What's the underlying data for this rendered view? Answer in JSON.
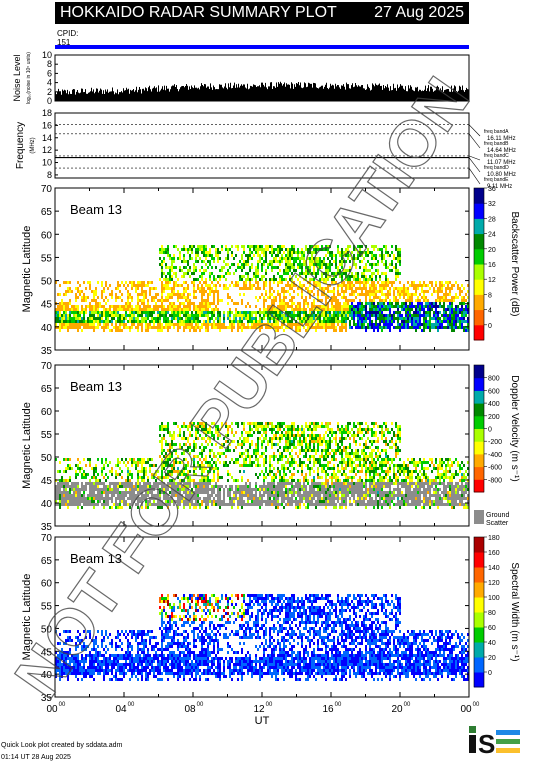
{
  "header": {
    "title": "HOKKAIDO RADAR SUMMARY PLOT",
    "date": "27 Aug 2025",
    "cpid_label": "CPID:",
    "cpid_value": "151"
  },
  "footer": {
    "credit_line1": "Quick Look plot created by sddata.adm",
    "credit_line2": "01:14 UT 28 Aug 2025",
    "logo_text": "ISEE"
  },
  "watermark": "NOT FOR PUBLICATION",
  "colors": {
    "cpid_bar": "#0000ff",
    "ground_scatter": "#8c8c8c"
  },
  "chart_data": [
    {
      "name": "noise",
      "type": "bar",
      "ylabel": "Noise Level",
      "ylabel_sub": "log₁₀(noise in 10⁵ units)",
      "ylim": [
        0,
        10
      ],
      "yticks": [
        "0",
        "2",
        "4",
        "6",
        "8",
        "10"
      ],
      "x_hours": [
        0,
        1,
        2,
        3,
        4,
        5,
        6,
        7,
        8,
        9,
        10,
        11,
        12,
        13,
        14,
        15,
        16,
        17,
        18,
        19,
        20,
        21,
        22,
        23,
        24
      ],
      "values": [
        1.8,
        2.0,
        2.1,
        2.2,
        2.3,
        2.4,
        2.7,
        2.9,
        3.1,
        3.2,
        3.2,
        3.3,
        3.3,
        3.4,
        3.4,
        3.4,
        3.3,
        3.2,
        3.1,
        3.0,
        2.9,
        2.8,
        2.8,
        2.7,
        2.6
      ]
    },
    {
      "name": "frequency",
      "type": "line",
      "ylabel": "Frequency",
      "ylabel_sub": "(MHz)",
      "ylim": [
        7.5,
        18
      ],
      "yticks": [
        "8",
        "10",
        "12",
        "14",
        "16",
        "18"
      ],
      "series": [
        {
          "value": 10.8,
          "style": "solid",
          "x_range": [
            0,
            24
          ]
        }
      ],
      "bands": [
        {
          "label": "freq bandA",
          "mhz": "16.11 MHz",
          "value": 16.11
        },
        {
          "label": "freq bandB",
          "mhz": "14.64 MHz",
          "value": 14.64
        },
        {
          "label": "freq bandC",
          "mhz": "11.07 MHz",
          "value": 11.07
        },
        {
          "label": "freq bandD",
          "mhz": "10.80 MHz",
          "value": 10.8
        },
        {
          "label": "freq bandE",
          "mhz": "9.11 MHz",
          "value": 9.11
        }
      ]
    },
    {
      "name": "power",
      "type": "heatmap",
      "beam_label": "Beam 13",
      "ylabel": "Magnetic Latitude",
      "ylim": [
        35,
        70
      ],
      "yticks": [
        "35",
        "40",
        "45",
        "50",
        "55",
        "60",
        "65",
        "70"
      ],
      "colorbar_label": "Backscatter Power (dB)",
      "colorbar_ticks": [
        "0",
        "4",
        "8",
        "12",
        "16",
        "20",
        "24",
        "28",
        "32",
        "36"
      ],
      "colorbar_range": [
        0,
        40
      ],
      "colorbar_colors": [
        "#ff0000",
        "#ff6600",
        "#ffaa00",
        "#ffff00",
        "#aaff00",
        "#00cc00",
        "#008800",
        "#00aaaa",
        "#0000ff",
        "#00008b"
      ],
      "has_ground_scatter": false
    },
    {
      "name": "velocity",
      "type": "heatmap",
      "beam_label": "Beam 13",
      "ylabel": "Magnetic Latitude",
      "ylim": [
        35,
        70
      ],
      "yticks": [
        "35",
        "40",
        "45",
        "50",
        "55",
        "60",
        "65",
        "70"
      ],
      "colorbar_label": "Doppler Velocity (m s⁻¹)",
      "colorbar_ticks": [
        "-800",
        "-600",
        "-400",
        "-200",
        "0",
        "200",
        "400",
        "600",
        "800"
      ],
      "colorbar_range": [
        -1000,
        1000
      ],
      "colorbar_colors": [
        "#ff0000",
        "#ff6600",
        "#ffaa00",
        "#ffff00",
        "#aaff00",
        "#00cc00",
        "#008800",
        "#00aaaa",
        "#0000ff",
        "#00008b"
      ],
      "has_ground_scatter": true,
      "ground_label1": "Ground",
      "ground_label2": "Scatter"
    },
    {
      "name": "width",
      "type": "heatmap",
      "beam_label": "Beam 13",
      "ylabel": "Magnetic Latitude",
      "ylim": [
        35,
        70
      ],
      "yticks": [
        "35",
        "40",
        "45",
        "50",
        "55",
        "60",
        "65",
        "70"
      ],
      "colorbar_label": "Spectral Width (m s⁻¹)",
      "colorbar_ticks": [
        "0",
        "20",
        "40",
        "60",
        "80",
        "100",
        "120",
        "140",
        "160",
        "180"
      ],
      "colorbar_range": [
        0,
        200
      ],
      "colorbar_colors": [
        "#0000ff",
        "#0066ff",
        "#00aaaa",
        "#00cc00",
        "#aaff00",
        "#ffff00",
        "#ffaa00",
        "#ff6600",
        "#ff0000",
        "#aa0000"
      ],
      "has_ground_scatter": false
    }
  ],
  "x_axis": {
    "label": "UT",
    "tick_values": [
      "00",
      "04",
      "08",
      "12",
      "16",
      "20",
      "00"
    ],
    "tick_sup": "00"
  }
}
